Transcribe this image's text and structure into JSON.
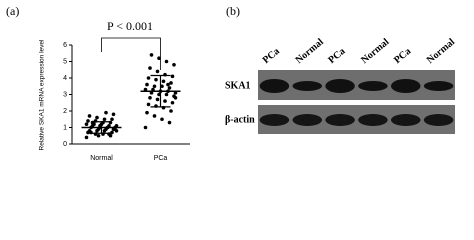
{
  "chart_data": {
    "type": "dotplot",
    "panel_label": "(a)",
    "annotation": "P < 0.001",
    "y_label": "Relative SKA1 mRNA expression level",
    "ylim": [
      0,
      6
    ],
    "yticks": [
      0,
      1,
      2,
      3,
      4,
      5,
      6
    ],
    "groups": [
      {
        "category": "Normal",
        "mean": 1.0,
        "sd": 0.35,
        "values": [
          0.4,
          0.5,
          0.6,
          0.6,
          0.7,
          0.7,
          0.8,
          0.8,
          0.8,
          0.9,
          0.9,
          0.9,
          1.0,
          1.0,
          1.0,
          1.0,
          1.1,
          1.1,
          1.1,
          1.2,
          1.2,
          1.2,
          1.3,
          1.3,
          1.4,
          1.4,
          1.5,
          1.5,
          1.6,
          1.7,
          1.8,
          1.9,
          0.5,
          0.7,
          0.9,
          1.0,
          1.1,
          1.3,
          0.8,
          0.6
        ]
      },
      {
        "category": "PCa",
        "mean": 3.2,
        "sd": 0.95,
        "values": [
          1.0,
          1.3,
          1.5,
          1.7,
          1.9,
          2.0,
          2.2,
          2.3,
          2.4,
          2.5,
          2.6,
          2.7,
          2.8,
          2.9,
          3.0,
          3.0,
          3.1,
          3.1,
          3.2,
          3.2,
          3.3,
          3.3,
          3.4,
          3.5,
          3.5,
          3.6,
          3.7,
          3.8,
          3.9,
          4.0,
          4.1,
          4.2,
          4.4,
          4.6,
          4.8,
          5.0,
          5.2,
          5.4,
          2.8,
          3.6
        ]
      }
    ]
  },
  "blot": {
    "panel_label": "(b)",
    "lanes": [
      "PCa",
      "Normal",
      "PCa",
      "Normal",
      "PCa",
      "Normal"
    ],
    "rows": [
      "SKA1",
      "β-actin"
    ]
  }
}
